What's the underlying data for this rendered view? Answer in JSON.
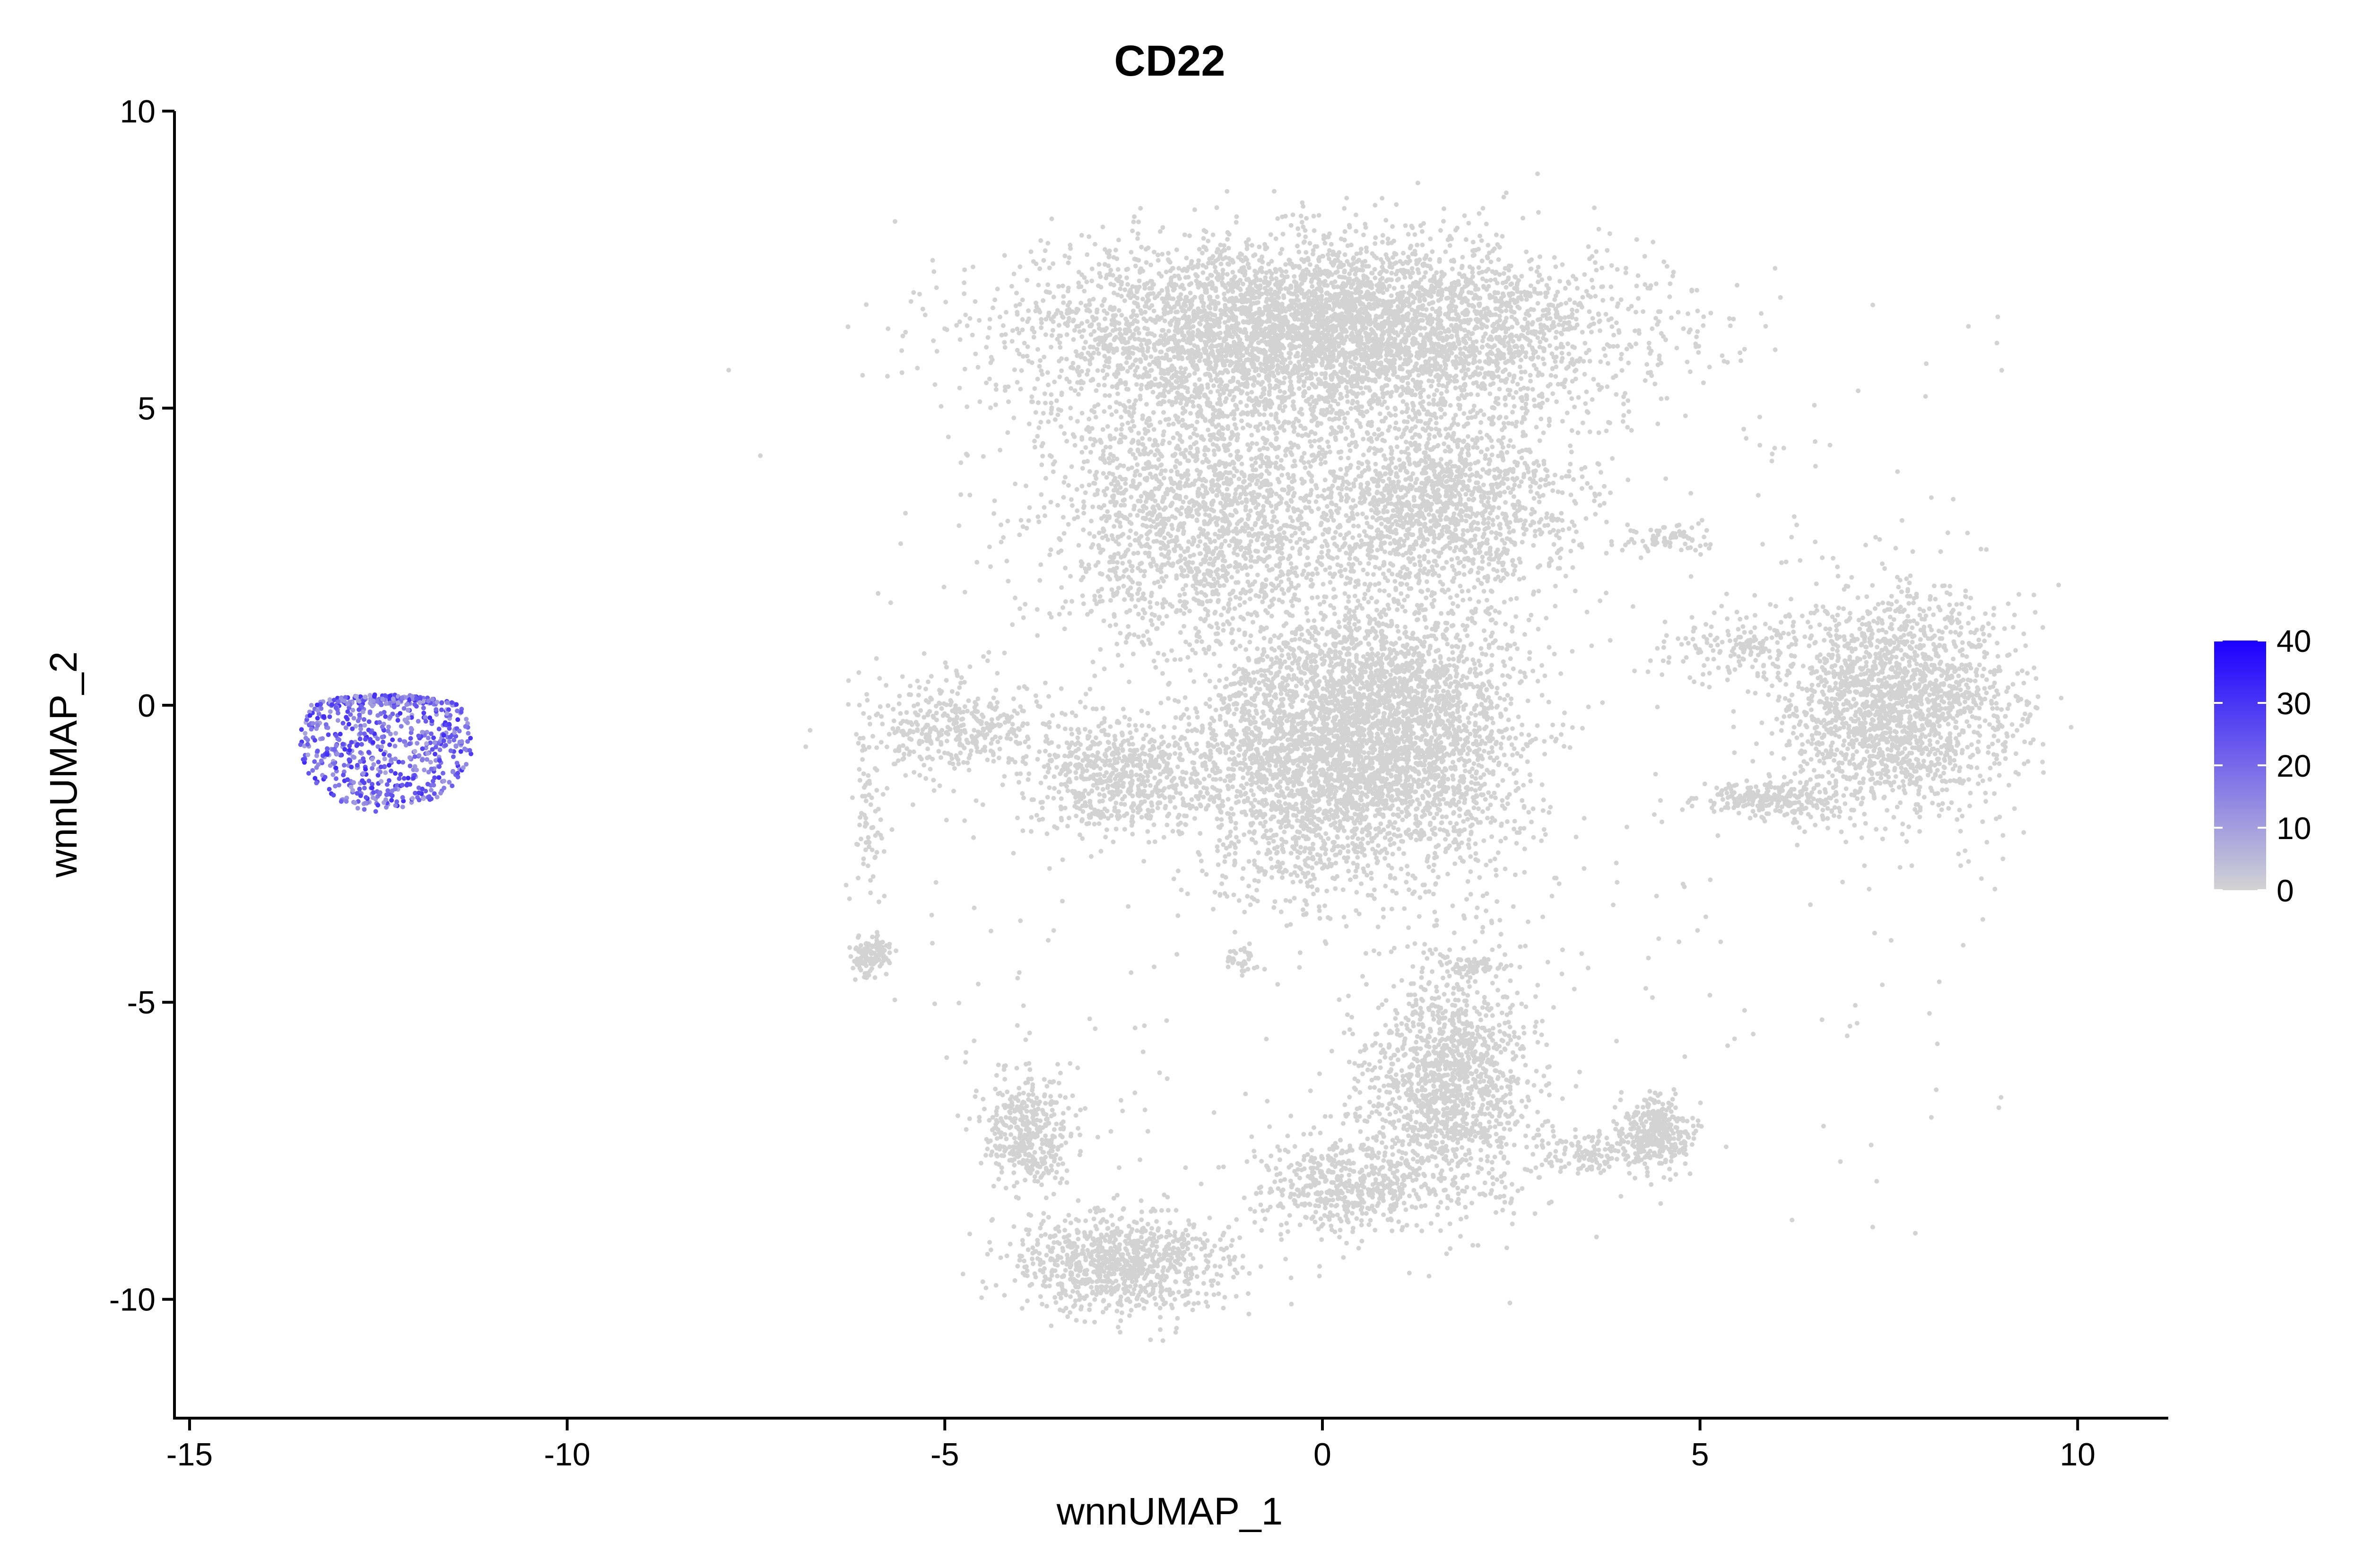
{
  "chart_data": {
    "type": "scatter",
    "title": "CD22",
    "xlabel": "wnnUMAP_1",
    "ylabel": "wnnUMAP_2",
    "xlim": [
      -15.2,
      11.2
    ],
    "ylim": [
      -12,
      10
    ],
    "x_ticks": [
      -15,
      -10,
      -5,
      0,
      5,
      10
    ],
    "x_tick_labels": [
      "-15",
      "-10",
      "-5",
      "0",
      "5",
      "10"
    ],
    "y_ticks": [
      10,
      5,
      0,
      -5,
      -10
    ],
    "y_tick_labels": [
      "10",
      "5",
      "0",
      "-5",
      "-10"
    ],
    "grid": false,
    "color_scale": {
      "min": 0,
      "max": 40,
      "low_color": "#d3d3d3",
      "high_color": "#1a00ff",
      "ticks": [
        40,
        30,
        20,
        10,
        0
      ],
      "tick_labels": [
        "40",
        "30",
        "20",
        "10",
        "0"
      ],
      "legend_position": "right"
    },
    "clusters": [
      {
        "cx": -12.4,
        "cy": -0.6,
        "rx": 1.15,
        "ry": 1.2,
        "n": 700,
        "expr_min": 8,
        "expr_max": 32,
        "shape": "b-cell"
      },
      {
        "cx": 0.0,
        "cy": 6.3,
        "rx": 3.8,
        "ry": 1.5,
        "n": 5200,
        "expr_min": 0,
        "expr_max": 0
      },
      {
        "cx": -1.6,
        "cy": 3.2,
        "rx": 2.1,
        "ry": 2.2,
        "n": 2000,
        "expr_min": 0,
        "expr_max": 0
      },
      {
        "cx": 1.5,
        "cy": 3.4,
        "rx": 1.8,
        "ry": 1.6,
        "n": 1500,
        "expr_min": 0,
        "expr_max": 0
      },
      {
        "cx": 0.9,
        "cy": -0.5,
        "rx": 1.7,
        "ry": 2.3,
        "n": 3200,
        "expr_min": 0,
        "expr_max": 0
      },
      {
        "cx": -0.6,
        "cy": -1.0,
        "rx": 1.2,
        "ry": 2.2,
        "n": 1200,
        "expr_min": 0,
        "expr_max": 0
      },
      {
        "cx": -2.7,
        "cy": -1.2,
        "rx": 1.3,
        "ry": 1.0,
        "n": 700,
        "expr_min": 0,
        "expr_max": 0
      },
      {
        "cx": -4.9,
        "cy": -0.4,
        "rx": 1.3,
        "ry": 0.8,
        "n": 400,
        "expr_min": 0,
        "expr_max": 0
      },
      {
        "cx": 7.6,
        "cy": 0.0,
        "rx": 1.5,
        "ry": 1.8,
        "n": 2000,
        "expr_min": 0,
        "expr_max": 0
      },
      {
        "cx": 6.0,
        "cy": -1.6,
        "rx": 1.0,
        "ry": 0.3,
        "n": 250,
        "expr_min": 0,
        "expr_max": 0
      },
      {
        "cx": 5.4,
        "cy": 1.0,
        "rx": 1.0,
        "ry": 0.6,
        "n": 150,
        "expr_min": 0,
        "expr_max": 0
      },
      {
        "cx": 1.7,
        "cy": -6.4,
        "rx": 1.1,
        "ry": 2.0,
        "n": 1400,
        "expr_min": 0,
        "expr_max": 0
      },
      {
        "cx": 0.3,
        "cy": -8.1,
        "rx": 1.1,
        "ry": 0.8,
        "n": 500,
        "expr_min": 0,
        "expr_max": 0
      },
      {
        "cx": -3.9,
        "cy": -7.2,
        "rx": 0.6,
        "ry": 1.0,
        "n": 400,
        "expr_min": 0,
        "expr_max": 0
      },
      {
        "cx": -2.6,
        "cy": -9.4,
        "rx": 1.4,
        "ry": 0.8,
        "n": 900,
        "expr_min": 0,
        "expr_max": 0
      },
      {
        "cx": 4.4,
        "cy": -7.2,
        "rx": 0.45,
        "ry": 0.6,
        "n": 350,
        "expr_min": 0,
        "expr_max": 0
      },
      {
        "cx": 3.5,
        "cy": -7.5,
        "rx": 0.7,
        "ry": 0.4,
        "n": 120,
        "expr_min": 0,
        "expr_max": 0
      },
      {
        "cx": -6.0,
        "cy": -4.2,
        "rx": 0.25,
        "ry": 0.3,
        "n": 120,
        "expr_min": 0,
        "expr_max": 0
      },
      {
        "cx": -6.0,
        "cy": -2.0,
        "rx": 0.2,
        "ry": 1.3,
        "n": 60,
        "expr_min": 0,
        "expr_max": 0
      },
      {
        "cx": 1.9,
        "cy": -4.4,
        "rx": 0.4,
        "ry": 0.15,
        "n": 60,
        "expr_min": 0,
        "expr_max": 0
      },
      {
        "cx": 4.6,
        "cy": 2.8,
        "rx": 0.6,
        "ry": 0.3,
        "n": 70,
        "expr_min": 0,
        "expr_max": 0
      },
      {
        "cx": -1.1,
        "cy": -4.3,
        "rx": 0.2,
        "ry": 0.2,
        "n": 30,
        "expr_min": 0,
        "expr_max": 0
      }
    ]
  }
}
